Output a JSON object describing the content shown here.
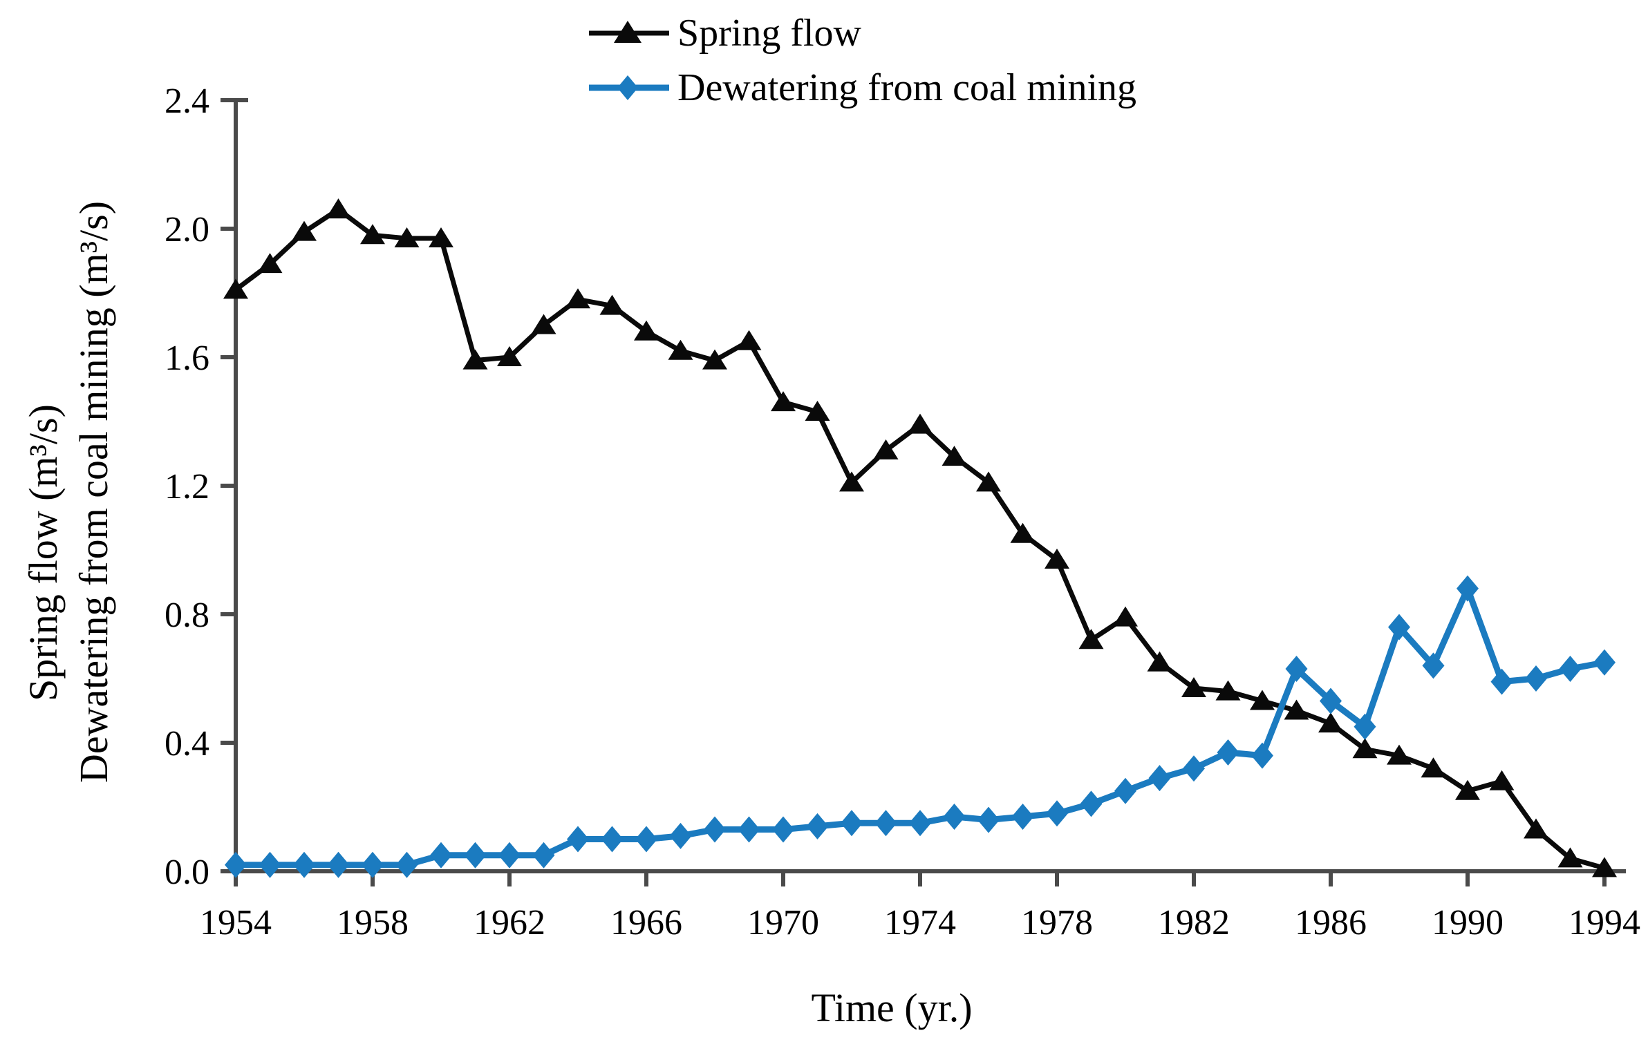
{
  "page": {
    "background": "#ffffff",
    "axis_color": "#4a4a4a"
  },
  "chart_data": {
    "type": "line",
    "title": "",
    "xlabel": "Time (yr.)",
    "ylabel_line1": "Spring flow (m³/s)",
    "ylabel_line2": "Dewatering from coal mining (m³/s)",
    "xlim": [
      1954,
      1994
    ],
    "ylim": [
      0.0,
      2.4
    ],
    "xticks": [
      1954,
      1958,
      1962,
      1966,
      1970,
      1974,
      1978,
      1982,
      1986,
      1990,
      1994
    ],
    "yticks": [
      0.0,
      0.4,
      0.8,
      1.2,
      1.6,
      2.0,
      2.4
    ],
    "ytick_decimals": 1,
    "grid": false,
    "legend_position": "top-center",
    "x": [
      1954,
      1955,
      1956,
      1957,
      1958,
      1959,
      1960,
      1961,
      1962,
      1963,
      1964,
      1965,
      1966,
      1967,
      1968,
      1969,
      1970,
      1971,
      1972,
      1973,
      1974,
      1975,
      1976,
      1977,
      1978,
      1979,
      1980,
      1981,
      1982,
      1983,
      1984,
      1985,
      1986,
      1987,
      1988,
      1989,
      1990,
      1991,
      1992,
      1993,
      1994
    ],
    "series": [
      {
        "name": "Spring flow",
        "color": "#0a0a0a",
        "marker": "triangle",
        "line_width": 7,
        "values": [
          1.81,
          1.89,
          1.99,
          2.06,
          1.98,
          1.97,
          1.97,
          1.59,
          1.6,
          1.7,
          1.78,
          1.76,
          1.68,
          1.62,
          1.59,
          1.65,
          1.46,
          1.43,
          1.21,
          1.31,
          1.39,
          1.29,
          1.21,
          1.05,
          0.97,
          0.72,
          0.79,
          0.65,
          0.57,
          0.56,
          0.53,
          0.5,
          0.46,
          0.38,
          0.36,
          0.32,
          0.25,
          0.28,
          0.13,
          0.04,
          0.01
        ]
      },
      {
        "name": "Dewatering from coal mining",
        "color": "#1b7bc0",
        "marker": "diamond",
        "line_width": 9,
        "values": [
          0.02,
          0.02,
          0.02,
          0.02,
          0.02,
          0.02,
          0.05,
          0.05,
          0.05,
          0.05,
          0.1,
          0.1,
          0.1,
          0.11,
          0.13,
          0.13,
          0.13,
          0.14,
          0.15,
          0.15,
          0.15,
          0.17,
          0.16,
          0.17,
          0.18,
          0.21,
          0.25,
          0.29,
          0.32,
          0.37,
          0.36,
          0.63,
          0.53,
          0.45,
          0.76,
          0.64,
          0.88,
          0.59,
          0.6,
          0.63,
          0.65
        ]
      }
    ]
  }
}
